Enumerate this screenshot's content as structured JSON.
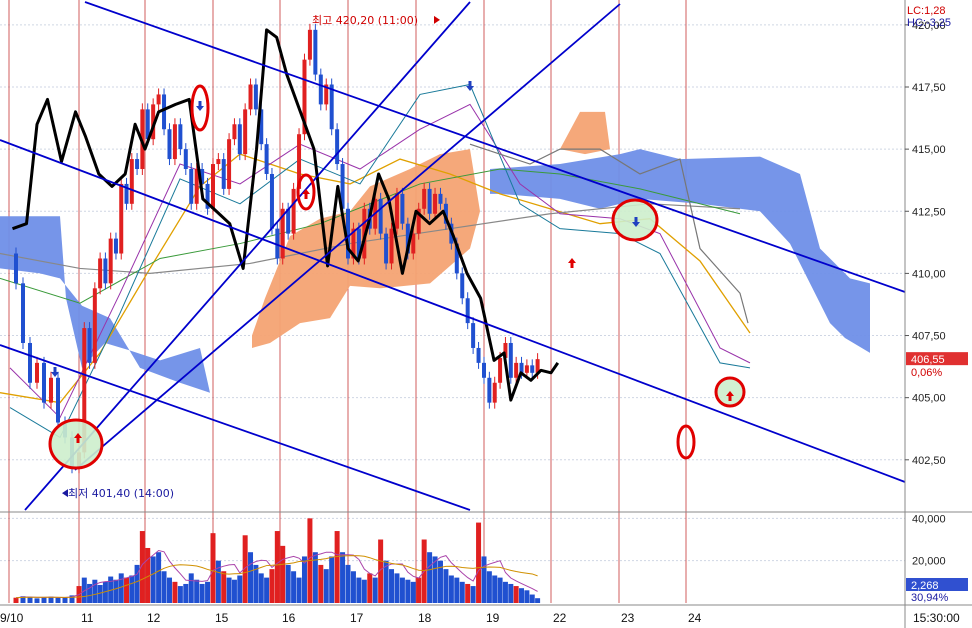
{
  "chart_data": {
    "type": "line",
    "price_axis": {
      "ticks": [
        "420,00",
        "417,50",
        "415,00",
        "412,50",
        "410,00",
        "407,50",
        "405,00",
        "402,50"
      ],
      "tick_values": [
        420.0,
        417.5,
        415.0,
        412.5,
        410.0,
        407.5,
        405.0,
        402.5
      ],
      "range": [
        400.4,
        421.0
      ]
    },
    "volume_axis": {
      "ticks": [
        "40,000",
        "20,000"
      ],
      "tick_values": [
        40000,
        20000
      ],
      "range": [
        0,
        43000
      ]
    },
    "date_labels": [
      "9/10",
      "11",
      "12",
      "15",
      "16",
      "17",
      "18",
      "19",
      "22",
      "23",
      "24"
    ],
    "time_label": "15:30:00",
    "indicators": {
      "lc": "LC:1,28",
      "hc": "HC:-3,25"
    },
    "current_price": {
      "label": "406,55",
      "value": 406.55,
      "change": "0,06%"
    },
    "current_volume": {
      "label": "2,268",
      "value": 2268,
      "pct": "30,94%"
    },
    "annotations": {
      "high": {
        "label": "최고 420,20 (11:00)",
        "value": 420.2
      },
      "low": {
        "label": "최저 401,40 (14:00)",
        "value": 401.4
      }
    },
    "overlay_black_line": [
      {
        "x": 0.05,
        "y": 411.8
      },
      {
        "x": 0.25,
        "y": 412.0
      },
      {
        "x": 0.4,
        "y": 416.0
      },
      {
        "x": 0.55,
        "y": 417.0
      },
      {
        "x": 0.75,
        "y": 414.5
      },
      {
        "x": 0.95,
        "y": 416.5
      },
      {
        "x": 1.1,
        "y": 415.5
      },
      {
        "x": 1.3,
        "y": 414.0
      },
      {
        "x": 1.5,
        "y": 413.5
      },
      {
        "x": 1.7,
        "y": 414.0
      },
      {
        "x": 1.85,
        "y": 416.0
      },
      {
        "x": 2.0,
        "y": 415.0
      },
      {
        "x": 2.2,
        "y": 416.5
      },
      {
        "x": 2.45,
        "y": 416.8
      },
      {
        "x": 2.65,
        "y": 417.0
      },
      {
        "x": 2.85,
        "y": 413.0
      },
      {
        "x": 3.05,
        "y": 412.5
      },
      {
        "x": 3.25,
        "y": 412.0
      },
      {
        "x": 3.45,
        "y": 410.2
      },
      {
        "x": 3.65,
        "y": 415.0
      },
      {
        "x": 3.8,
        "y": 419.8
      },
      {
        "x": 3.95,
        "y": 419.5
      },
      {
        "x": 4.1,
        "y": 418.0
      },
      {
        "x": 4.3,
        "y": 416.5
      },
      {
        "x": 4.5,
        "y": 415.0
      },
      {
        "x": 4.7,
        "y": 410.3
      },
      {
        "x": 4.85,
        "y": 413.5
      },
      {
        "x": 5.0,
        "y": 411.0
      },
      {
        "x": 5.15,
        "y": 410.5
      },
      {
        "x": 5.3,
        "y": 412.0
      },
      {
        "x": 5.45,
        "y": 414.0
      },
      {
        "x": 5.6,
        "y": 413.0
      },
      {
        "x": 5.8,
        "y": 410.0
      },
      {
        "x": 6.0,
        "y": 412.5
      },
      {
        "x": 6.2,
        "y": 412.0
      },
      {
        "x": 6.4,
        "y": 412.5
      },
      {
        "x": 6.55,
        "y": 411.5
      },
      {
        "x": 6.75,
        "y": 410.0
      },
      {
        "x": 6.95,
        "y": 409.0
      },
      {
        "x": 7.15,
        "y": 406.5
      },
      {
        "x": 7.3,
        "y": 406.8
      },
      {
        "x": 7.4,
        "y": 404.9
      },
      {
        "x": 7.55,
        "y": 406.0
      },
      {
        "x": 7.7,
        "y": 405.7
      },
      {
        "x": 7.85,
        "y": 406.1
      },
      {
        "x": 8.0,
        "y": 406.0
      },
      {
        "x": 8.1,
        "y": 406.4
      }
    ],
    "price_bars": [
      {
        "d": 0.1,
        "o": 410.8,
        "c": 409.6
      },
      {
        "d": 0.2,
        "o": 409.6,
        "c": 407.2
      },
      {
        "d": 0.3,
        "o": 407.2,
        "c": 405.6
      },
      {
        "d": 0.4,
        "o": 405.6,
        "c": 406.4
      },
      {
        "d": 0.5,
        "o": 406.4,
        "c": 404.8
      },
      {
        "d": 0.6,
        "o": 404.8,
        "c": 405.8
      },
      {
        "d": 0.7,
        "o": 405.8,
        "c": 404.0
      },
      {
        "d": 0.8,
        "o": 404.0,
        "c": 403.4
      },
      {
        "d": 0.9,
        "o": 403.4,
        "c": 402.2
      },
      {
        "d": 1.0,
        "o": 402.2,
        "c": 402.8
      },
      {
        "d": 1.08,
        "o": 402.8,
        "c": 407.8
      },
      {
        "d": 1.16,
        "o": 407.8,
        "c": 406.4
      },
      {
        "d": 1.24,
        "o": 406.4,
        "c": 409.4
      },
      {
        "d": 1.32,
        "o": 409.4,
        "c": 410.6
      },
      {
        "d": 1.4,
        "o": 410.6,
        "c": 409.6
      },
      {
        "d": 1.48,
        "o": 409.6,
        "c": 411.4
      },
      {
        "d": 1.56,
        "o": 411.4,
        "c": 410.8
      },
      {
        "d": 1.64,
        "o": 410.8,
        "c": 413.6
      },
      {
        "d": 1.72,
        "o": 413.6,
        "c": 412.8
      },
      {
        "d": 1.8,
        "o": 412.8,
        "c": 414.6
      },
      {
        "d": 1.88,
        "o": 414.6,
        "c": 414.2
      },
      {
        "d": 1.96,
        "o": 414.2,
        "c": 416.6
      },
      {
        "d": 2.04,
        "o": 416.6,
        "c": 415.4
      },
      {
        "d": 2.12,
        "o": 415.4,
        "c": 416.8
      },
      {
        "d": 2.2,
        "o": 416.8,
        "c": 417.2
      },
      {
        "d": 2.28,
        "o": 417.2,
        "c": 415.8
      },
      {
        "d": 2.36,
        "o": 415.8,
        "c": 414.6
      },
      {
        "d": 2.44,
        "o": 414.6,
        "c": 416.0
      },
      {
        "d": 2.52,
        "o": 416.0,
        "c": 415.0
      },
      {
        "d": 2.6,
        "o": 415.0,
        "c": 414.2
      },
      {
        "d": 2.68,
        "o": 414.2,
        "c": 412.8
      },
      {
        "d": 2.76,
        "o": 412.8,
        "c": 414.2
      },
      {
        "d": 2.84,
        "o": 414.2,
        "c": 413.6
      },
      {
        "d": 2.92,
        "o": 413.6,
        "c": 412.6
      },
      {
        "d": 3.0,
        "o": 412.6,
        "c": 414.4
      },
      {
        "d": 3.08,
        "o": 414.4,
        "c": 414.6
      },
      {
        "d": 3.16,
        "o": 414.6,
        "c": 413.4
      },
      {
        "d": 3.24,
        "o": 413.4,
        "c": 415.4
      },
      {
        "d": 3.32,
        "o": 415.4,
        "c": 416.0
      },
      {
        "d": 3.4,
        "o": 416.0,
        "c": 414.8
      },
      {
        "d": 3.48,
        "o": 414.8,
        "c": 416.6
      },
      {
        "d": 3.56,
        "o": 416.6,
        "c": 417.6
      },
      {
        "d": 3.64,
        "o": 417.6,
        "c": 416.6
      },
      {
        "d": 3.72,
        "o": 416.6,
        "c": 415.2
      },
      {
        "d": 3.8,
        "o": 415.2,
        "c": 414.0
      },
      {
        "d": 3.88,
        "o": 414.0,
        "c": 411.8
      },
      {
        "d": 3.96,
        "o": 411.8,
        "c": 410.6
      },
      {
        "d": 4.04,
        "o": 410.6,
        "c": 412.6
      },
      {
        "d": 4.12,
        "o": 412.6,
        "c": 411.6
      },
      {
        "d": 4.2,
        "o": 411.6,
        "c": 413.4
      },
      {
        "d": 4.28,
        "o": 413.4,
        "c": 415.6
      },
      {
        "d": 4.36,
        "o": 415.6,
        "c": 418.6
      },
      {
        "d": 4.44,
        "o": 418.6,
        "c": 419.8
      },
      {
        "d": 4.52,
        "o": 419.8,
        "c": 418.0
      },
      {
        "d": 4.6,
        "o": 418.0,
        "c": 416.8
      },
      {
        "d": 4.68,
        "o": 416.8,
        "c": 417.6
      },
      {
        "d": 4.76,
        "o": 417.6,
        "c": 415.8
      },
      {
        "d": 4.84,
        "o": 415.8,
        "c": 414.4
      },
      {
        "d": 4.92,
        "o": 414.4,
        "c": 412.6
      },
      {
        "d": 5.0,
        "o": 412.6,
        "c": 410.6
      },
      {
        "d": 5.08,
        "o": 410.6,
        "c": 411.8
      },
      {
        "d": 5.16,
        "o": 411.8,
        "c": 410.6
      },
      {
        "d": 5.24,
        "o": 410.6,
        "c": 412.6
      },
      {
        "d": 5.32,
        "o": 412.6,
        "c": 411.8
      },
      {
        "d": 5.4,
        "o": 411.8,
        "c": 413.0
      },
      {
        "d": 5.48,
        "o": 413.0,
        "c": 411.6
      },
      {
        "d": 5.56,
        "o": 411.6,
        "c": 410.4
      },
      {
        "d": 5.64,
        "o": 410.4,
        "c": 411.8
      },
      {
        "d": 5.72,
        "o": 411.8,
        "c": 413.2
      },
      {
        "d": 5.8,
        "o": 413.2,
        "c": 412.0
      },
      {
        "d": 5.88,
        "o": 412.0,
        "c": 410.8
      },
      {
        "d": 5.96,
        "o": 410.8,
        "c": 411.6
      },
      {
        "d": 6.04,
        "o": 411.6,
        "c": 412.6
      },
      {
        "d": 6.12,
        "o": 412.6,
        "c": 413.4
      },
      {
        "d": 6.2,
        "o": 413.4,
        "c": 412.4
      },
      {
        "d": 6.28,
        "o": 412.4,
        "c": 413.2
      },
      {
        "d": 6.36,
        "o": 413.2,
        "c": 412.8
      },
      {
        "d": 6.44,
        "o": 412.8,
        "c": 412.0
      },
      {
        "d": 6.52,
        "o": 412.0,
        "c": 411.2
      },
      {
        "d": 6.6,
        "o": 411.2,
        "c": 410.0
      },
      {
        "d": 6.68,
        "o": 410.0,
        "c": 409.0
      },
      {
        "d": 6.76,
        "o": 409.0,
        "c": 408.0
      },
      {
        "d": 6.84,
        "o": 408.0,
        "c": 407.0
      },
      {
        "d": 6.92,
        "o": 407.0,
        "c": 406.4
      },
      {
        "d": 7.0,
        "o": 406.4,
        "c": 405.8
      },
      {
        "d": 7.08,
        "o": 405.8,
        "c": 404.8
      },
      {
        "d": 7.16,
        "o": 404.8,
        "c": 405.6
      },
      {
        "d": 7.24,
        "o": 405.6,
        "c": 406.6
      },
      {
        "d": 7.32,
        "o": 406.6,
        "c": 407.2
      },
      {
        "d": 7.4,
        "o": 407.2,
        "c": 405.8
      },
      {
        "d": 7.48,
        "o": 405.8,
        "c": 406.4
      },
      {
        "d": 7.56,
        "o": 406.4,
        "c": 406.0
      },
      {
        "d": 7.64,
        "o": 406.0,
        "c": 406.3
      },
      {
        "d": 7.72,
        "o": 406.3,
        "c": 406.0
      },
      {
        "d": 7.8,
        "o": 406.0,
        "c": 406.55
      }
    ],
    "volume_bars": [
      {
        "d": 0.1,
        "v": 2500
      },
      {
        "d": 0.2,
        "v": 3200
      },
      {
        "d": 0.3,
        "v": 2800
      },
      {
        "d": 0.4,
        "v": 2200
      },
      {
        "d": 0.5,
        "v": 2600
      },
      {
        "d": 0.6,
        "v": 3000
      },
      {
        "d": 0.7,
        "v": 2400
      },
      {
        "d": 0.8,
        "v": 2800
      },
      {
        "d": 0.9,
        "v": 3600
      },
      {
        "d": 1.0,
        "v": 8000
      },
      {
        "d": 1.08,
        "v": 12000
      },
      {
        "d": 1.16,
        "v": 9000
      },
      {
        "d": 1.24,
        "v": 11000
      },
      {
        "d": 1.32,
        "v": 8500
      },
      {
        "d": 1.4,
        "v": 10000
      },
      {
        "d": 1.48,
        "v": 12500
      },
      {
        "d": 1.56,
        "v": 11000
      },
      {
        "d": 1.64,
        "v": 14000
      },
      {
        "d": 1.72,
        "v": 12000
      },
      {
        "d": 1.8,
        "v": 13000
      },
      {
        "d": 1.88,
        "v": 18000
      },
      {
        "d": 1.96,
        "v": 34000
      },
      {
        "d": 2.04,
        "v": 26000
      },
      {
        "d": 2.12,
        "v": 22000
      },
      {
        "d": 2.2,
        "v": 24000
      },
      {
        "d": 2.28,
        "v": 15000
      },
      {
        "d": 2.36,
        "v": 12000
      },
      {
        "d": 2.44,
        "v": 10000
      },
      {
        "d": 2.52,
        "v": 8000
      },
      {
        "d": 2.6,
        "v": 9000
      },
      {
        "d": 2.68,
        "v": 14000
      },
      {
        "d": 2.76,
        "v": 11000
      },
      {
        "d": 2.84,
        "v": 9000
      },
      {
        "d": 2.92,
        "v": 10000
      },
      {
        "d": 3.0,
        "v": 33000
      },
      {
        "d": 3.08,
        "v": 20000
      },
      {
        "d": 3.16,
        "v": 15000
      },
      {
        "d": 3.24,
        "v": 12000
      },
      {
        "d": 3.32,
        "v": 11000
      },
      {
        "d": 3.4,
        "v": 13000
      },
      {
        "d": 3.48,
        "v": 32000
      },
      {
        "d": 3.56,
        "v": 24000
      },
      {
        "d": 3.64,
        "v": 18000
      },
      {
        "d": 3.72,
        "v": 14000
      },
      {
        "d": 3.8,
        "v": 12000
      },
      {
        "d": 3.88,
        "v": 16000
      },
      {
        "d": 3.96,
        "v": 34000
      },
      {
        "d": 4.04,
        "v": 27000
      },
      {
        "d": 4.12,
        "v": 18000
      },
      {
        "d": 4.2,
        "v": 15000
      },
      {
        "d": 4.28,
        "v": 12000
      },
      {
        "d": 4.36,
        "v": 22000
      },
      {
        "d": 4.44,
        "v": 40000
      },
      {
        "d": 4.52,
        "v": 24000
      },
      {
        "d": 4.6,
        "v": 18000
      },
      {
        "d": 4.68,
        "v": 16000
      },
      {
        "d": 4.76,
        "v": 22000
      },
      {
        "d": 4.84,
        "v": 34000
      },
      {
        "d": 4.92,
        "v": 24000
      },
      {
        "d": 5.0,
        "v": 18000
      },
      {
        "d": 5.08,
        "v": 15000
      },
      {
        "d": 5.16,
        "v": 12000
      },
      {
        "d": 5.24,
        "v": 11000
      },
      {
        "d": 5.32,
        "v": 14000
      },
      {
        "d": 5.4,
        "v": 12000
      },
      {
        "d": 5.48,
        "v": 30000
      },
      {
        "d": 5.56,
        "v": 20000
      },
      {
        "d": 5.64,
        "v": 16000
      },
      {
        "d": 5.72,
        "v": 14000
      },
      {
        "d": 5.8,
        "v": 12000
      },
      {
        "d": 5.88,
        "v": 11000
      },
      {
        "d": 5.96,
        "v": 10000
      },
      {
        "d": 6.04,
        "v": 12000
      },
      {
        "d": 6.12,
        "v": 30000
      },
      {
        "d": 6.2,
        "v": 24000
      },
      {
        "d": 6.28,
        "v": 22000
      },
      {
        "d": 6.36,
        "v": 20000
      },
      {
        "d": 6.44,
        "v": 16000
      },
      {
        "d": 6.52,
        "v": 13000
      },
      {
        "d": 6.6,
        "v": 12000
      },
      {
        "d": 6.68,
        "v": 10000
      },
      {
        "d": 6.76,
        "v": 9000
      },
      {
        "d": 6.84,
        "v": 8000
      },
      {
        "d": 6.92,
        "v": 38000
      },
      {
        "d": 7.0,
        "v": 22000
      },
      {
        "d": 7.08,
        "v": 15000
      },
      {
        "d": 7.16,
        "v": 13000
      },
      {
        "d": 7.24,
        "v": 12000
      },
      {
        "d": 7.32,
        "v": 10000
      },
      {
        "d": 7.4,
        "v": 9000
      },
      {
        "d": 7.48,
        "v": 8000
      },
      {
        "d": 7.56,
        "v": 7000
      },
      {
        "d": 7.64,
        "v": 6000
      },
      {
        "d": 7.72,
        "v": 4000
      },
      {
        "d": 7.8,
        "v": 2268
      }
    ],
    "grid": true
  },
  "colors": {
    "ichimoku_bull": "#f4a373",
    "ichimoku_bear": "#6f8fe8",
    "trendline": "#0000cc",
    "bull_candle": "#e02020",
    "bear_candle": "#2050d0",
    "black_line": "#000000",
    "current_price_tag": "#e03030",
    "current_volume_tag": "#3050d0",
    "date_grid": "#c02020"
  }
}
